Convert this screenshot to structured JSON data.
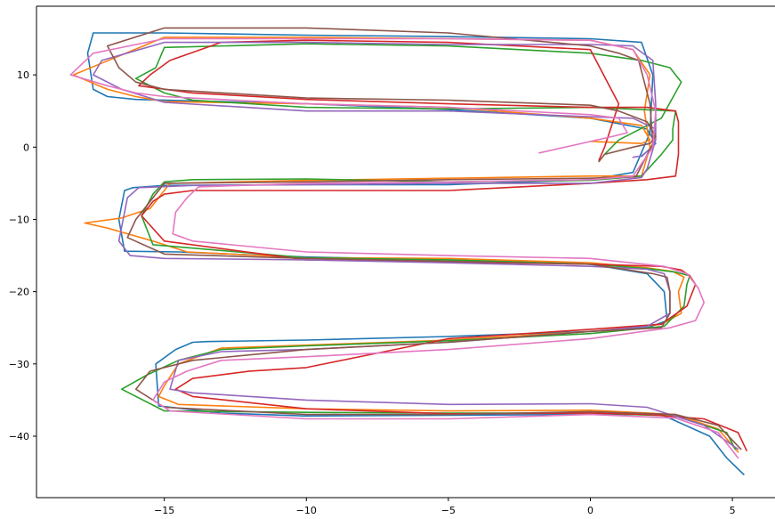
{
  "chart_data": {
    "type": "line",
    "title": "",
    "xlabel": "",
    "ylabel": "",
    "xlim": [
      -19.5,
      6.5
    ],
    "ylim": [
      -48.5,
      19.5
    ],
    "xticks": [
      -15,
      -10,
      -5,
      0,
      5
    ],
    "yticks": [
      10,
      0,
      -10,
      -20,
      -30,
      -40
    ],
    "xtick_labels": [
      "−15",
      "−10",
      "−5",
      "0",
      "5"
    ],
    "ytick_labels": [
      "10",
      "0",
      "−10",
      "−20",
      "−30",
      "−40"
    ],
    "grid": false,
    "legend": "none",
    "spines": [
      "left",
      "bottom",
      "top"
    ],
    "series": [
      {
        "color": "#1f77b4",
        "x": [
          5.4,
          4.8,
          4.2,
          2.5,
          0,
          -5,
          -10,
          -13,
          -15.2,
          -15.3,
          -14.6,
          -14.0,
          -13.5,
          -10,
          -5,
          0,
          2.0,
          2.7,
          2.6,
          2.0,
          0,
          -5,
          -10,
          -14.5,
          -16.4,
          -16.6,
          -16.4,
          -16.1,
          -15,
          -10,
          -5,
          0,
          1.5,
          2.1,
          2.2,
          1.8,
          0,
          -5,
          -10,
          -15,
          -17.5,
          -17.7,
          -17.5,
          -17.0,
          -16,
          -10,
          -5,
          0,
          2.0,
          2.3,
          1.8
        ],
        "y": [
          -45.3,
          -43.0,
          -40.0,
          -37.0,
          -37.0,
          -37.1,
          -37.2,
          -36.8,
          -35.8,
          -30.0,
          -28.0,
          -27.0,
          -26.9,
          -26.7,
          -26.2,
          -25.5,
          -25.0,
          -24.0,
          -20.0,
          -17.5,
          -16.2,
          -15.6,
          -15.2,
          -14.5,
          -14.4,
          -10.0,
          -6.0,
          -5.6,
          -5.3,
          -5.2,
          -5.2,
          -4.5,
          -3.5,
          2.0,
          10.0,
          14.5,
          15.0,
          15.3,
          15.5,
          15.8,
          15.8,
          13.0,
          8.0,
          7.0,
          6.6,
          6.0,
          5.2,
          4.0,
          2.5,
          0.5,
          -1.3
        ]
      },
      {
        "color": "#ff7f0e",
        "x": [
          5.2,
          4.5,
          3.0,
          0,
          -5,
          -10,
          -14.5,
          -15.2,
          -15.0,
          -14.5,
          -13.0,
          -10,
          -5,
          0,
          2.5,
          3.2,
          3.1,
          3.3,
          2.9,
          2.0,
          0,
          -5,
          -10,
          -14.2,
          -15.4,
          -17.0,
          -17.8,
          -16.5,
          -15.5,
          -14.8,
          -10,
          -5,
          0,
          1.8,
          2.1,
          1.9,
          2.1,
          1.5,
          0,
          -5,
          -10,
          -15,
          -18.2,
          -17.0,
          -16.0,
          -15,
          -10,
          -5,
          0,
          1.8,
          2.1,
          1.8,
          0
        ],
        "y": [
          -42.2,
          -39.0,
          -37.0,
          -36.4,
          -36.5,
          -36.2,
          -35.6,
          -34.5,
          -33.0,
          -30.0,
          -27.8,
          -27.4,
          -26.7,
          -25.5,
          -24.5,
          -23.0,
          -20.0,
          -18.0,
          -17.2,
          -16.7,
          -16.0,
          -15.4,
          -15.3,
          -14.5,
          -13.0,
          -11.2,
          -10.5,
          -9.8,
          -8.5,
          -5.0,
          -4.6,
          -4.3,
          -4.0,
          -4.0,
          0.0,
          5.0,
          10.0,
          13.5,
          14.8,
          15.0,
          15.2,
          15.2,
          10.0,
          8.0,
          7.0,
          6.3,
          6.0,
          5.5,
          4.0,
          3.0,
          1.0,
          0.5,
          0.8
        ]
      },
      {
        "color": "#2ca02c",
        "x": [
          5.1,
          4.8,
          3.0,
          0,
          -5,
          -10,
          -15,
          -16.5,
          -15.6,
          -14.5,
          -13.0,
          -10,
          -5,
          0,
          2.6,
          3.3,
          3.4,
          3.5,
          3.0,
          2.0,
          0,
          -5,
          -10,
          -15.4,
          -15.8,
          -15.4,
          -15.0,
          -14.0,
          -10,
          -5,
          0,
          1.8,
          2.5,
          2.9,
          2.9,
          3.0,
          0,
          -5,
          -10,
          -14.0,
          -15.0,
          -16.0,
          -15.3,
          -15,
          -10,
          -5,
          0,
          1.8,
          2.8,
          3.2,
          2.5,
          1.0,
          0.5
        ],
        "y": [
          -41.8,
          -39.5,
          -37.2,
          -36.8,
          -36.8,
          -36.7,
          -36.5,
          -33.5,
          -31.5,
          -29.5,
          -28.0,
          -27.5,
          -26.8,
          -25.8,
          -24.8,
          -22.0,
          -19.0,
          -17.8,
          -17.3,
          -16.8,
          -16.2,
          -15.6,
          -15.3,
          -13.5,
          -9.5,
          -6.5,
          -4.8,
          -4.5,
          -4.4,
          -4.8,
          -4.6,
          -4.0,
          -1.0,
          1.0,
          2.5,
          5.0,
          5.5,
          5.3,
          5.5,
          6.5,
          7.5,
          9.5,
          11.0,
          13.8,
          14.3,
          14.0,
          13.0,
          12.0,
          11.0,
          9.0,
          4.0,
          1.0,
          -1.0
        ]
      },
      {
        "color": "#d62728",
        "x": [
          5.5,
          5.2,
          4.0,
          2.0,
          0,
          -5,
          -10,
          -14.0,
          -14.6,
          -14.0,
          -12.0,
          -10,
          -5,
          0,
          2.5,
          3.4,
          3.7,
          3.5,
          3.2,
          2.5,
          0,
          -5,
          -10,
          -15.0,
          -15.8,
          -15.4,
          -15.0,
          -14.0,
          -10,
          -5,
          0,
          2.0,
          3.0,
          3.1,
          3.1,
          3.1,
          3.0,
          2.0,
          0,
          -5,
          -10,
          -14.0,
          -15.9,
          -15.5,
          -14.8,
          -13.0,
          -10,
          -5,
          0,
          1.0,
          0.5,
          0.3
        ],
        "y": [
          -42.0,
          -39.5,
          -37.6,
          -37.0,
          -36.8,
          -36.9,
          -36.2,
          -34.5,
          -33.5,
          -32.0,
          -31.0,
          -30.5,
          -26.5,
          -25.2,
          -24.5,
          -22.0,
          -19.0,
          -17.8,
          -17.0,
          -16.5,
          -16.2,
          -15.9,
          -15.6,
          -13.0,
          -9.5,
          -7.5,
          -6.5,
          -6.0,
          -6.0,
          -6.0,
          -5.0,
          -4.5,
          -4.0,
          -1.0,
          1.0,
          3.5,
          5.0,
          5.5,
          5.5,
          6.0,
          6.6,
          7.5,
          8.5,
          10.0,
          12.0,
          14.5,
          14.8,
          14.5,
          13.5,
          6.0,
          0.0,
          -1.8
        ]
      },
      {
        "color": "#9467bd",
        "x": [
          5.2,
          4.0,
          2.0,
          0,
          -5,
          -10,
          -14.0,
          -14.8,
          -14.5,
          -13.0,
          -10,
          -5,
          0,
          2.0,
          2.8,
          2.8,
          2.6,
          2.0,
          0,
          -5,
          -10,
          -15.0,
          -16.2,
          -16.6,
          -16.3,
          -15.9,
          -14,
          -10,
          -5,
          0,
          1.8,
          2.0,
          2.3,
          2.3,
          2.2,
          1.5,
          0,
          -5,
          -10,
          -15,
          -17.2,
          -17.5,
          -16.5,
          -15,
          -10,
          -5,
          0,
          1.5,
          2.3,
          2.2,
          1.8,
          1.5
        ],
        "y": [
          -41.8,
          -38.5,
          -36.0,
          -35.5,
          -35.6,
          -35.0,
          -34.0,
          -33.5,
          -29.5,
          -28.3,
          -28.0,
          -27.0,
          -25.5,
          -24.8,
          -23.0,
          -20.0,
          -17.5,
          -16.9,
          -16.5,
          -16.0,
          -15.6,
          -15.4,
          -15.0,
          -13.0,
          -7.0,
          -5.6,
          -5.3,
          -5.2,
          -5.0,
          -5.0,
          -4.2,
          -3.0,
          1.0,
          6.0,
          12.0,
          14.0,
          14.2,
          14.2,
          14.5,
          14.5,
          12.0,
          10.0,
          8.0,
          6.2,
          5.0,
          5.0,
          4.2,
          4.0,
          2.5,
          0.0,
          -1.2,
          -1.4
        ]
      },
      {
        "color": "#8c564b",
        "x": [
          5.3,
          4.5,
          3.0,
          0,
          -5,
          -10,
          -15,
          -16.0,
          -15.5,
          -14.0,
          -10,
          -5,
          0,
          2.5,
          2.8,
          2.8,
          2.7,
          2.2,
          0,
          -5,
          -10,
          -15.0,
          -16.3,
          -16.0,
          -15.5,
          -15,
          -10,
          -5,
          0,
          1.6,
          2.2,
          2.1,
          1.7,
          1.0,
          0,
          -5,
          -10,
          -15.0,
          -17.0,
          -16.6,
          -16.0,
          -15,
          -10,
          -5,
          0,
          1.0,
          2.0,
          2.3,
          2.1,
          1.5,
          0.5,
          0.3
        ],
        "y": [
          -41.8,
          -38.5,
          -37.0,
          -36.6,
          -37.0,
          -37.0,
          -36.0,
          -33.5,
          -31.0,
          -29.5,
          -28.0,
          -27.0,
          -25.5,
          -25.0,
          -23.0,
          -20.0,
          -18.0,
          -17.5,
          -16.2,
          -15.8,
          -15.4,
          -14.8,
          -12.5,
          -10.0,
          -7.5,
          -5.0,
          -4.8,
          -4.5,
          -4.3,
          -4.1,
          0.5,
          6.0,
          12.0,
          13.0,
          14.0,
          15.8,
          16.5,
          16.5,
          14.0,
          11.0,
          9.0,
          8.0,
          6.8,
          6.5,
          5.8,
          5.0,
          3.5,
          1.5,
          0.5,
          0.0,
          -1.0,
          -2.0
        ]
      },
      {
        "color": "#e377c2",
        "x": [
          5.2,
          4.5,
          3.0,
          0,
          -5,
          -10,
          -14.8,
          -15.4,
          -15.0,
          -14.2,
          -13.0,
          -10,
          -5,
          0,
          2.8,
          3.7,
          4.0,
          3.8,
          3.4,
          2.6,
          0,
          -5,
          -10,
          -14.0,
          -14.7,
          -14.6,
          -14.2,
          -13.8,
          -10,
          -5,
          0,
          1.5,
          2.2,
          2.3,
          2.0,
          1.5,
          0,
          -5,
          -10,
          -15,
          -17.5,
          -18.3,
          -17.0,
          -16.0,
          -15,
          -10,
          -5,
          0,
          1.0,
          1.3,
          0.8,
          -1.8
        ],
        "y": [
          -43.0,
          -39.5,
          -37.5,
          -37.0,
          -37.6,
          -37.6,
          -36.5,
          -35.0,
          -32.5,
          -31.0,
          -29.5,
          -29.0,
          -28.0,
          -26.5,
          -25.0,
          -24.0,
          -21.5,
          -19.5,
          -17.5,
          -16.5,
          -15.4,
          -15.0,
          -14.5,
          -13.0,
          -12.0,
          -9.0,
          -7.0,
          -5.5,
          -5.0,
          -4.8,
          -4.5,
          -4.0,
          0.0,
          5.0,
          10.0,
          13.5,
          14.8,
          15.0,
          15.0,
          15.0,
          13.0,
          10.0,
          8.5,
          7.5,
          7.0,
          6.0,
          5.5,
          4.5,
          4.0,
          2.0,
          1.5,
          -0.8
        ]
      }
    ]
  }
}
